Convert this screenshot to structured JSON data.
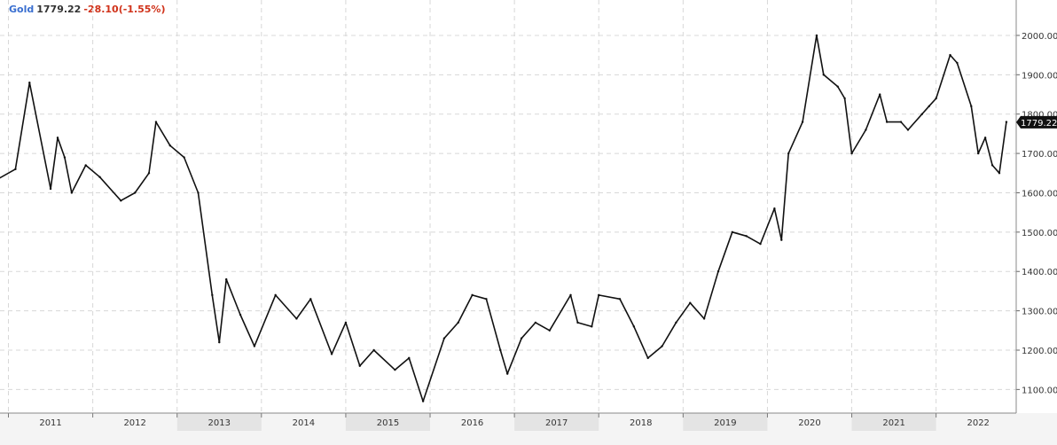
{
  "header": {
    "symbol": "Gold",
    "price": "1779.22",
    "change": "-28.10(-1.55%)"
  },
  "colors": {
    "symbol": "#3a6fd0",
    "price": "#333333",
    "change": "#d0321a",
    "series": "#111111",
    "grid": "#d8d8d8",
    "band": "#e4e4e4"
  },
  "chart_data": {
    "type": "line",
    "title": "",
    "xlabel": "",
    "ylabel": "",
    "grid": true,
    "y_axis_position": "right",
    "ylim": [
      1040,
      2090
    ],
    "xlim": [
      2010.9,
      2022.95
    ],
    "y_ticks": [
      "2000.00",
      "1900.00",
      "1800.00",
      "1700.00",
      "1600.00",
      "1500.00",
      "1400.00",
      "1300.00",
      "1200.00",
      "1100.00"
    ],
    "x_ticks": [
      "2011",
      "2012",
      "2013",
      "2014",
      "2015",
      "2016",
      "2017",
      "2018",
      "2019",
      "2020",
      "2021",
      "2022"
    ],
    "last_value_label": "1779.22",
    "series": [
      {
        "x": [
          "2010-11",
          "2011-02",
          "2011-04",
          "2011-07",
          "2011-08",
          "2011-09",
          "2011-10",
          "2011-12",
          "2012-02",
          "2012-05",
          "2012-07",
          "2012-09",
          "2012-10",
          "2012-12",
          "2013-02",
          "2013-04",
          "2013-06",
          "2013-07",
          "2013-08",
          "2013-10",
          "2013-12",
          "2014-03",
          "2014-06",
          "2014-08",
          "2014-11",
          "2015-01",
          "2015-03",
          "2015-05",
          "2015-08",
          "2015-10",
          "2015-12",
          "2016-03",
          "2016-05",
          "2016-07",
          "2016-09",
          "2016-11",
          "2016-12",
          "2017-02",
          "2017-04",
          "2017-06",
          "2017-09",
          "2017-10",
          "2017-12",
          "2018-01",
          "2018-04",
          "2018-06",
          "2018-08",
          "2018-10",
          "2018-12",
          "2019-02",
          "2019-04",
          "2019-06",
          "2019-08",
          "2019-10",
          "2019-12",
          "2020-02",
          "2020-03",
          "2020-04",
          "2020-06",
          "2020-08",
          "2020-09",
          "2020-11",
          "2020-12",
          "2021-01",
          "2021-03",
          "2021-05",
          "2021-06",
          "2021-08",
          "2021-09",
          "2021-11",
          "2021-12",
          "2022-01",
          "2022-03",
          "2022-04",
          "2022-06",
          "2022-07",
          "2022-08",
          "2022-09",
          "2022-10",
          "2022-11"
        ],
        "y": [
          1630,
          1660,
          1880,
          1610,
          1740,
          1690,
          1600,
          1670,
          1640,
          1580,
          1600,
          1650,
          1780,
          1720,
          1690,
          1600,
          1340,
          1220,
          1380,
          1290,
          1210,
          1340,
          1280,
          1330,
          1190,
          1270,
          1160,
          1200,
          1150,
          1180,
          1070,
          1230,
          1270,
          1340,
          1330,
          1200,
          1140,
          1230,
          1270,
          1250,
          1340,
          1270,
          1260,
          1340,
          1330,
          1260,
          1180,
          1210,
          1270,
          1320,
          1280,
          1400,
          1500,
          1490,
          1470,
          1560,
          1480,
          1700,
          1780,
          2000,
          1900,
          1870,
          1840,
          1700,
          1760,
          1850,
          1780,
          1780,
          1760,
          1800,
          1820,
          1840,
          1950,
          1930,
          1820,
          1700,
          1740,
          1670,
          1650,
          1780
        ]
      }
    ]
  }
}
